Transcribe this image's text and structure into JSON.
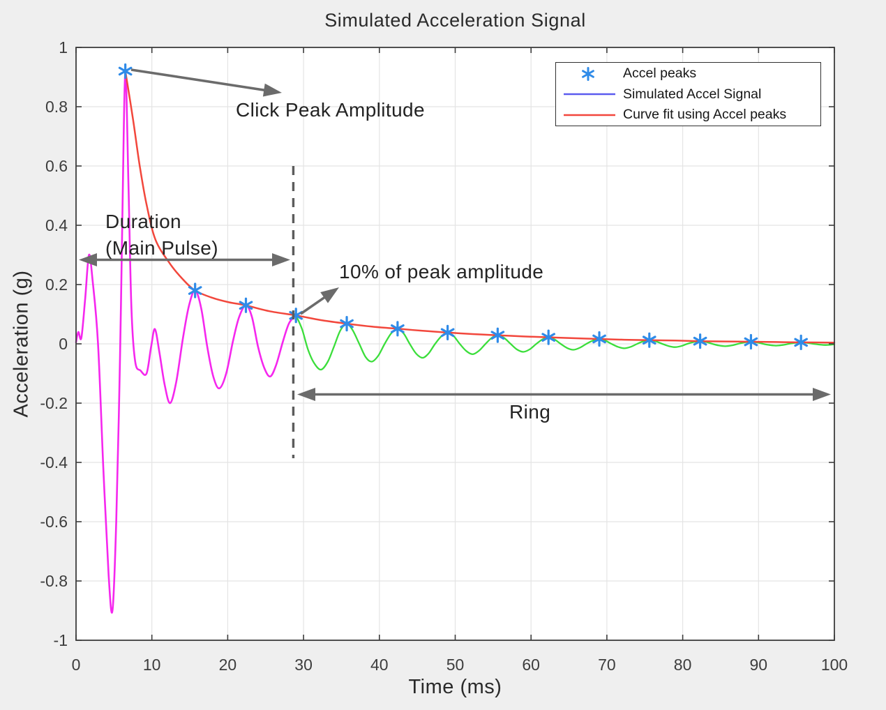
{
  "chart_data": {
    "type": "line",
    "title": "Simulated Acceleration Signal",
    "xlabel": "Time (ms)",
    "ylabel": "Acceleration (g)",
    "xlim": [
      0,
      100
    ],
    "ylim": [
      -1,
      1
    ],
    "grid": true,
    "x_ticks": [
      0,
      10,
      20,
      30,
      40,
      50,
      60,
      70,
      80,
      90,
      100
    ],
    "x_tick_labels": [
      "0",
      "10",
      "20",
      "30",
      "40",
      "50",
      "60",
      "70",
      "80",
      "90",
      "100"
    ],
    "y_ticks": [
      -1,
      -0.8,
      -0.6,
      -0.4,
      -0.2,
      0,
      0.2,
      0.4,
      0.6,
      0.8,
      1
    ],
    "y_tick_labels": [
      "-1",
      "-0.8",
      "-0.6",
      "-0.4",
      "-0.2",
      "0",
      "0.2",
      "0.4",
      "0.6",
      "0.8",
      "1"
    ],
    "legend": {
      "position": "top-right",
      "entries": [
        {
          "label": "Accel peaks",
          "marker": "asterisk",
          "color": "#2f8be8"
        },
        {
          "label": "Simulated Accel Signal",
          "marker": "line",
          "color": "#5b5bef"
        },
        {
          "label": "Curve fit using Accel peaks",
          "marker": "line",
          "color": "#f2473c"
        }
      ]
    },
    "peaks": {
      "name": "Accel peaks",
      "color": "#2f8be8",
      "points": [
        [
          6.5,
          0.92
        ],
        [
          15.7,
          0.18
        ],
        [
          22.4,
          0.13
        ],
        [
          29.0,
          0.096
        ],
        [
          35.7,
          0.068
        ],
        [
          42.4,
          0.051
        ],
        [
          49.0,
          0.038
        ],
        [
          55.6,
          0.029
        ],
        [
          62.3,
          0.022
        ],
        [
          69.0,
          0.0165
        ],
        [
          75.6,
          0.0125
        ],
        [
          82.3,
          0.009
        ],
        [
          89.0,
          0.007
        ],
        [
          95.6,
          0.005
        ]
      ]
    },
    "series": [
      {
        "name": "Simulated Accel Signal (main pulse segment)",
        "color": "#f527ee",
        "points": [
          [
            0,
            0.005
          ],
          [
            0.3,
            0.04
          ],
          [
            0.7,
            0.02
          ],
          [
            1.2,
            0.15
          ],
          [
            1.7,
            0.3
          ],
          [
            2.2,
            0.21
          ],
          [
            2.9,
            0
          ],
          [
            3.6,
            -0.42
          ],
          [
            4.3,
            -0.78
          ],
          [
            4.8,
            -0.9
          ],
          [
            5.3,
            -0.6
          ],
          [
            5.8,
            -0.05
          ],
          [
            6.15,
            0.5
          ],
          [
            6.5,
            0.92
          ],
          [
            6.9,
            0.55
          ],
          [
            7.3,
            0.12
          ],
          [
            7.8,
            -0.06
          ],
          [
            8.5,
            -0.09
          ],
          [
            9.3,
            -0.1
          ],
          [
            9.9,
            -0.01
          ],
          [
            10.4,
            0.05
          ],
          [
            11.0,
            -0.03
          ],
          [
            11.7,
            -0.14
          ],
          [
            12.4,
            -0.2
          ],
          [
            13.2,
            -0.13
          ],
          [
            14.1,
            0.02
          ],
          [
            14.9,
            0.13
          ],
          [
            15.7,
            0.18
          ],
          [
            16.5,
            0.12
          ],
          [
            17.3,
            -0.01
          ],
          [
            18.1,
            -0.11
          ],
          [
            18.9,
            -0.15
          ],
          [
            19.8,
            -0.1
          ],
          [
            20.7,
            0.01
          ],
          [
            21.5,
            0.09
          ],
          [
            22.4,
            0.13
          ],
          [
            23.2,
            0.09
          ],
          [
            24.0,
            -0.01
          ],
          [
            24.8,
            -0.08
          ],
          [
            25.6,
            -0.11
          ],
          [
            26.4,
            -0.07
          ],
          [
            27.3,
            0.01
          ],
          [
            28.1,
            0.07
          ],
          [
            29.0,
            0.096
          ]
        ]
      },
      {
        "name": "Simulated Accel Signal (ring segment)",
        "color": "#3bde3b",
        "points": [
          [
            29.0,
            0.096
          ],
          [
            29.8,
            0.05
          ],
          [
            30.6,
            -0.02
          ],
          [
            31.4,
            -0.065
          ],
          [
            32.3,
            -0.087
          ],
          [
            33.2,
            -0.06
          ],
          [
            34.0,
            -0.01
          ],
          [
            34.85,
            0.045
          ],
          [
            35.7,
            0.068
          ],
          [
            36.5,
            0.045
          ],
          [
            37.35,
            0
          ],
          [
            38.2,
            -0.045
          ],
          [
            39.0,
            -0.06
          ],
          [
            39.85,
            -0.04
          ],
          [
            40.7,
            0
          ],
          [
            41.55,
            0.035
          ],
          [
            42.4,
            0.051
          ],
          [
            43.2,
            0.035
          ],
          [
            44.0,
            0
          ],
          [
            44.85,
            -0.033
          ],
          [
            45.7,
            -0.047
          ],
          [
            46.5,
            -0.032
          ],
          [
            47.35,
            0
          ],
          [
            48.2,
            0.026
          ],
          [
            49.0,
            0.038
          ],
          [
            49.8,
            0.026
          ],
          [
            50.6,
            0
          ],
          [
            51.45,
            -0.024
          ],
          [
            52.3,
            -0.035
          ],
          [
            53.15,
            -0.023
          ],
          [
            54.0,
            0
          ],
          [
            54.8,
            0.02
          ],
          [
            55.6,
            0.029
          ],
          [
            56.45,
            0.02
          ],
          [
            57.3,
            0
          ],
          [
            58.15,
            -0.019
          ],
          [
            59.0,
            -0.027
          ],
          [
            59.85,
            -0.018
          ],
          [
            60.7,
            0
          ],
          [
            61.5,
            0.015
          ],
          [
            62.3,
            0.022
          ],
          [
            63.1,
            0.015
          ],
          [
            63.9,
            0
          ],
          [
            64.75,
            -0.014
          ],
          [
            65.6,
            -0.02
          ],
          [
            66.45,
            -0.013
          ],
          [
            67.3,
            0
          ],
          [
            68.15,
            0.011
          ],
          [
            69.0,
            0.0165
          ],
          [
            69.8,
            0.011
          ],
          [
            70.6,
            0
          ],
          [
            71.45,
            -0.01
          ],
          [
            72.3,
            -0.015
          ],
          [
            73.15,
            -0.01
          ],
          [
            74.0,
            0
          ],
          [
            74.8,
            0.0085
          ],
          [
            75.6,
            0.0125
          ],
          [
            76.45,
            0.0085
          ],
          [
            77.3,
            0
          ],
          [
            78.15,
            -0.0075
          ],
          [
            79.0,
            -0.011
          ],
          [
            79.8,
            -0.0075
          ],
          [
            80.6,
            0
          ],
          [
            81.45,
            0.006
          ],
          [
            82.3,
            0.009
          ],
          [
            83.1,
            0.006
          ],
          [
            83.9,
            0
          ],
          [
            84.75,
            -0.0055
          ],
          [
            85.6,
            -0.008
          ],
          [
            86.45,
            -0.0055
          ],
          [
            87.3,
            0
          ],
          [
            88.15,
            0.0048
          ],
          [
            89.0,
            0.007
          ],
          [
            89.8,
            0.0048
          ],
          [
            90.6,
            0
          ],
          [
            91.45,
            -0.004
          ],
          [
            92.3,
            -0.006
          ],
          [
            93.15,
            -0.004
          ],
          [
            94.0,
            0
          ],
          [
            94.8,
            0.0034
          ],
          [
            95.6,
            0.005
          ],
          [
            96.4,
            0.0034
          ],
          [
            97.2,
            0
          ],
          [
            98.05,
            -0.0027
          ],
          [
            98.9,
            -0.004
          ],
          [
            99.5,
            -0.003
          ],
          [
            100,
            -0.002
          ]
        ]
      },
      {
        "name": "Curve fit using Accel peaks",
        "color": "#f2473c",
        "points": [
          [
            6.5,
            0.92
          ],
          [
            7.5,
            0.76
          ],
          [
            8.4,
            0.6
          ],
          [
            9.3,
            0.47
          ],
          [
            10.5,
            0.35
          ],
          [
            12.4,
            0.27
          ],
          [
            14.0,
            0.22
          ],
          [
            15.7,
            0.18
          ],
          [
            18.0,
            0.155
          ],
          [
            20.2,
            0.14
          ],
          [
            22.4,
            0.13
          ],
          [
            25.5,
            0.11
          ],
          [
            29.0,
            0.096
          ],
          [
            32.3,
            0.08
          ],
          [
            35.7,
            0.068
          ],
          [
            39.0,
            0.058
          ],
          [
            42.4,
            0.051
          ],
          [
            45.7,
            0.044
          ],
          [
            49.0,
            0.038
          ],
          [
            52.3,
            0.033
          ],
          [
            55.6,
            0.029
          ],
          [
            59.0,
            0.025
          ],
          [
            62.3,
            0.022
          ],
          [
            65.6,
            0.019
          ],
          [
            69.0,
            0.0165
          ],
          [
            72.3,
            0.014
          ],
          [
            75.6,
            0.0125
          ],
          [
            79.0,
            0.011
          ],
          [
            82.3,
            0.009
          ],
          [
            85.6,
            0.008
          ],
          [
            89.0,
            0.007
          ],
          [
            92.3,
            0.006
          ],
          [
            95.6,
            0.005
          ],
          [
            100,
            0.004
          ]
        ]
      }
    ],
    "annotations": {
      "click_peak": "Click Peak Amplitude",
      "duration_line1": "Duration",
      "duration_line2": "(Main Pulse)",
      "ten_percent": "10% of peak amplitude",
      "ring": "Ring",
      "dashed_line_t": 28.65
    },
    "colors": {
      "annotation_arrow": "#6b6b6b",
      "dashed_line": "#5c5c5c",
      "grid": "#e4e4e4",
      "axis_box": "#3c3c3c",
      "tick_label": "#3d3d3d",
      "plot_background": "#ffffff",
      "figure_background": "#efefef"
    }
  }
}
